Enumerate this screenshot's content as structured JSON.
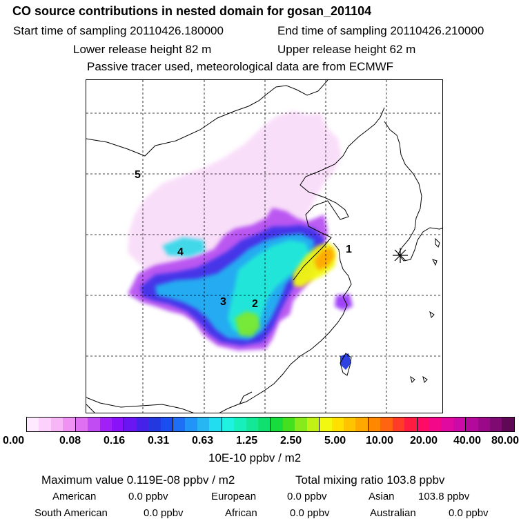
{
  "header": {
    "title": "CO  source contributions in nested domain for gosan_201104",
    "start_time": "Start time of sampling 20110426.180000",
    "end_time": "End time of sampling 20110426.210000",
    "lower_height": "Lower release height   82 m",
    "upper_height": "Upper release height   62 m",
    "tracer_note": "Passive tracer used, meteorological data are from ECMWF"
  },
  "map": {
    "labels": [
      "1",
      "2",
      "3",
      "4",
      "5"
    ]
  },
  "colorbar": {
    "ticks": [
      "0.00",
      "0.08",
      "0.16",
      "0.31",
      "0.63",
      "1.25",
      "2.50",
      "5.00",
      "10.00",
      "20.00",
      "40.00",
      "80.00"
    ],
    "unit": "10E-10 ppbv / m2",
    "colors": [
      "#ffeaff",
      "#fcd2fc",
      "#f7b6f6",
      "#f092f3",
      "#e070f2",
      "#c24cf4",
      "#a020f5",
      "#8a12f8",
      "#6a16f2",
      "#4622e8",
      "#2438e0",
      "#1b4ef0",
      "#1e6ef6",
      "#2394f7",
      "#28b6f3",
      "#22dcef",
      "#20f2e2",
      "#18f0bc",
      "#14e896",
      "#10e070",
      "#18dc3c",
      "#44e020",
      "#86ea1c",
      "#c2f214",
      "#f2f810",
      "#ffe000",
      "#ffc400",
      "#ffa800",
      "#ff8800",
      "#ff6410",
      "#ff3c28",
      "#ff1c40",
      "#ff0a64",
      "#f20888",
      "#e00aa0",
      "#cc0aa8",
      "#b40a9c",
      "#9a0a88",
      "#7e0a72",
      "#5e0856"
    ]
  },
  "summary": {
    "max_value": "Maximum value  0.119E-08 ppbv / m2",
    "total_ratio": "Total mixing ratio      103.8 ppbv",
    "american_label": "American",
    "american_value": "0.0 ppbv",
    "european_label": "European",
    "european_value": "0.0 ppbv",
    "asian_label": "Asian",
    "asian_value": "103.8 ppbv",
    "south_american_label": "South American",
    "south_american_value": "0.0 ppbv",
    "african_label": "African",
    "african_value": "0.0 ppbv",
    "australian_label": "Australian",
    "australian_value": "0.0 ppbv"
  }
}
